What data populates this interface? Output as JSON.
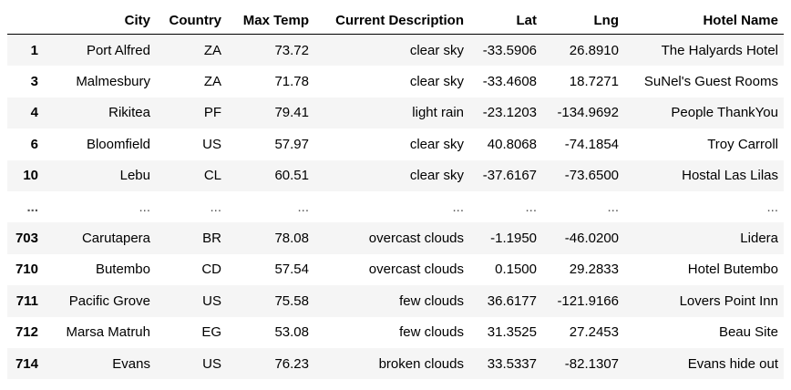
{
  "table": {
    "columns": [
      "",
      "City",
      "Country",
      "Max Temp",
      "Current Description",
      "Lat",
      "Lng",
      "Hotel Name"
    ],
    "rows": [
      {
        "index": "1",
        "city": "Port Alfred",
        "country": "ZA",
        "max_temp": "73.72",
        "description": "clear sky",
        "lat": "-33.5906",
        "lng": "26.8910",
        "hotel": "The Halyards Hotel"
      },
      {
        "index": "3",
        "city": "Malmesbury",
        "country": "ZA",
        "max_temp": "71.78",
        "description": "clear sky",
        "lat": "-33.4608",
        "lng": "18.7271",
        "hotel": "SuNel's Guest Rooms"
      },
      {
        "index": "4",
        "city": "Rikitea",
        "country": "PF",
        "max_temp": "79.41",
        "description": "light rain",
        "lat": "-23.1203",
        "lng": "-134.9692",
        "hotel": "People ThankYou"
      },
      {
        "index": "6",
        "city": "Bloomfield",
        "country": "US",
        "max_temp": "57.97",
        "description": "clear sky",
        "lat": "40.8068",
        "lng": "-74.1854",
        "hotel": "Troy Carroll"
      },
      {
        "index": "10",
        "city": "Lebu",
        "country": "CL",
        "max_temp": "60.51",
        "description": "clear sky",
        "lat": "-37.6167",
        "lng": "-73.6500",
        "hotel": "Hostal Las Lilas"
      },
      {
        "index": "...",
        "city": "...",
        "country": "...",
        "max_temp": "...",
        "description": "...",
        "lat": "...",
        "lng": "...",
        "hotel": "..."
      },
      {
        "index": "703",
        "city": "Carutapera",
        "country": "BR",
        "max_temp": "78.08",
        "description": "overcast clouds",
        "lat": "-1.1950",
        "lng": "-46.0200",
        "hotel": "Lidera"
      },
      {
        "index": "710",
        "city": "Butembo",
        "country": "CD",
        "max_temp": "57.54",
        "description": "overcast clouds",
        "lat": "0.1500",
        "lng": "29.2833",
        "hotel": "Hotel Butembo"
      },
      {
        "index": "711",
        "city": "Pacific Grove",
        "country": "US",
        "max_temp": "75.58",
        "description": "few clouds",
        "lat": "36.6177",
        "lng": "-121.9166",
        "hotel": "Lovers Point Inn"
      },
      {
        "index": "712",
        "city": "Marsa Matruh",
        "country": "EG",
        "max_temp": "53.08",
        "description": "few clouds",
        "lat": "31.3525",
        "lng": "27.2453",
        "hotel": "Beau Site"
      },
      {
        "index": "714",
        "city": "Evans",
        "country": "US",
        "max_temp": "76.23",
        "description": "broken clouds",
        "lat": "33.5337",
        "lng": "-82.1307",
        "hotel": "Evans hide out"
      }
    ]
  }
}
